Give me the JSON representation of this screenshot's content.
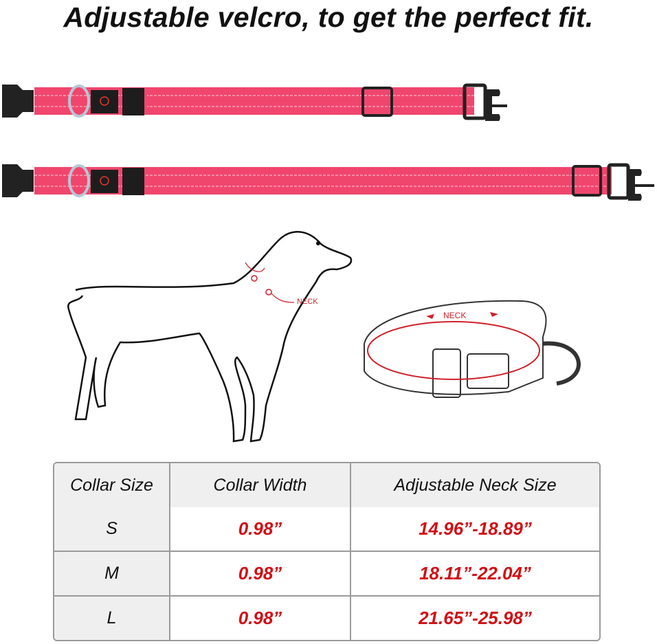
{
  "title": "Adjustable velcro, to get the perfect fit.",
  "colors": {
    "collar": "#f0466e",
    "accent_red": "#d10f15",
    "header_bg": "#efefef"
  },
  "illustration": {
    "dog_neck_label": "NECK",
    "collar_neck_label": "NECK"
  },
  "size_table": {
    "headers": [
      "Collar Size",
      "Collar Width",
      "Adjustable Neck Size"
    ],
    "rows": [
      {
        "size": "S",
        "width": "0.98”",
        "neck": "14.96”-18.89”"
      },
      {
        "size": "M",
        "width": "0.98”",
        "neck": "18.11”-22.04”"
      },
      {
        "size": "L",
        "width": "0.98”",
        "neck": "21.65”-25.98”"
      }
    ]
  }
}
